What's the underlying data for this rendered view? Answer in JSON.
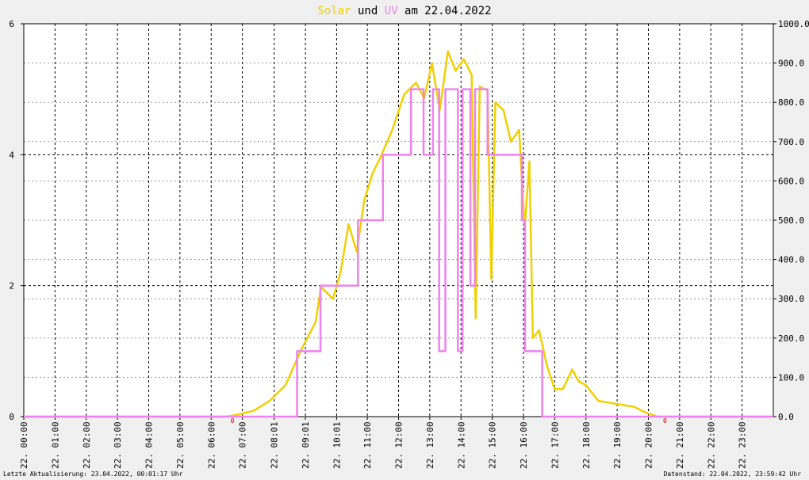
{
  "chart_data": {
    "type": "line",
    "title_words": [
      "Solar",
      "und",
      "UV",
      "am 22.04.2022"
    ],
    "footer_left": "Letzte Aktualisierung: 23.04.2022, 00:01:17 Uhr",
    "footer_right": "Datenstand: 22.04.2022, 23:59:42 Uhr",
    "xlim": [
      0,
      24
    ],
    "xticks": [
      {
        "value": 0,
        "label": "22. 00:00"
      },
      {
        "value": 1,
        "label": "22. 01:00"
      },
      {
        "value": 2,
        "label": "22. 02:00"
      },
      {
        "value": 3,
        "label": "22. 03:00"
      },
      {
        "value": 4,
        "label": "22. 04:00"
      },
      {
        "value": 5,
        "label": "22. 05:00"
      },
      {
        "value": 6,
        "label": "22. 06:00"
      },
      {
        "value": 7,
        "label": "22. 07:00"
      },
      {
        "value": 8.017,
        "label": "22. 08:01"
      },
      {
        "value": 9.017,
        "label": "22. 09:01"
      },
      {
        "value": 10.017,
        "label": "22. 10:01"
      },
      {
        "value": 11,
        "label": "22. 11:00"
      },
      {
        "value": 12,
        "label": "22. 12:00"
      },
      {
        "value": 13,
        "label": "22. 13:00"
      },
      {
        "value": 14,
        "label": "22. 14:00"
      },
      {
        "value": 15,
        "label": "22. 15:00"
      },
      {
        "value": 16,
        "label": "22. 16:00"
      },
      {
        "value": 17,
        "label": "22. 17:00"
      },
      {
        "value": 18,
        "label": "22. 18:00"
      },
      {
        "value": 19,
        "label": "22. 19:00"
      },
      {
        "value": 20,
        "label": "22. 20:00"
      },
      {
        "value": 21,
        "label": "22. 21:00"
      },
      {
        "value": 22,
        "label": "22. 22:00"
      },
      {
        "value": 23,
        "label": "22. 23:00"
      }
    ],
    "ylim": [
      0,
      6
    ],
    "yticks": [
      0,
      2,
      4,
      6
    ],
    "y2lim": [
      0,
      1000
    ],
    "y2ticks": [
      {
        "value": 0,
        "label": "0.0"
      },
      {
        "value": 100,
        "label": "100.0"
      },
      {
        "value": 200,
        "label": "200.0"
      },
      {
        "value": 300,
        "label": "300.0"
      },
      {
        "value": 400,
        "label": "400.0"
      },
      {
        "value": 500,
        "label": "500.0"
      },
      {
        "value": 600,
        "label": "600.0"
      },
      {
        "value": 700,
        "label": "700.0"
      },
      {
        "value": 800,
        "label": "800.0"
      },
      {
        "value": 900,
        "label": "900.0"
      },
      {
        "value": 1000,
        "label": "1000.0"
      }
    ],
    "grid": true,
    "annotations": [
      {
        "x": 6.68,
        "text": "0"
      },
      {
        "x": 20.53,
        "text": "0"
      }
    ],
    "series": [
      {
        "name": "Solar",
        "color": "#f0d000",
        "axis": "y2",
        "x": [
          0,
          6.5,
          6.85,
          7.36,
          7.87,
          8.38,
          8.88,
          9.34,
          9.52,
          9.9,
          10.15,
          10.4,
          10.66,
          10.9,
          11.17,
          11.42,
          11.8,
          12.18,
          12.56,
          12.82,
          13.07,
          13.32,
          13.58,
          13.83,
          14.09,
          14.34,
          14.47,
          14.6,
          14.85,
          14.97,
          15.1,
          15.36,
          15.6,
          15.86,
          16.04,
          16.19,
          16.3,
          16.5,
          16.75,
          17.0,
          17.26,
          17.56,
          17.77,
          18.0,
          18.4,
          18.78,
          19.16,
          19.54,
          19.92,
          20.3,
          24
        ],
        "values": [
          0,
          0,
          5,
          15,
          40,
          80,
          170,
          240,
          330,
          300,
          370,
          490,
          420,
          550,
          620,
          660,
          730,
          820,
          850,
          810,
          900,
          780,
          930,
          880,
          910,
          870,
          250,
          840,
          830,
          350,
          800,
          780,
          700,
          730,
          480,
          650,
          200,
          220,
          130,
          70,
          70,
          120,
          90,
          80,
          40,
          35,
          30,
          25,
          10,
          0,
          0
        ]
      },
      {
        "name": "UV",
        "color": "#ee82ee",
        "x": [
          0,
          8.75,
          8.75,
          9.5,
          9.5,
          10.7,
          10.7,
          11.5,
          11.5,
          12.4,
          12.4,
          12.8,
          12.8,
          13.1,
          13.1,
          13.3,
          13.3,
          13.5,
          13.5,
          13.9,
          13.9,
          14.05,
          14.05,
          14.3,
          14.3,
          14.45,
          14.45,
          14.85,
          14.85,
          15.95,
          15.95,
          16.05,
          16.05,
          16.6,
          16.6,
          24
        ],
        "values": [
          0,
          0,
          1,
          1,
          2,
          2,
          3,
          3,
          4,
          4,
          5,
          5,
          4,
          4,
          5,
          5,
          1,
          1,
          5,
          5,
          1,
          1,
          5,
          5,
          2,
          2,
          5,
          5,
          4,
          4,
          3,
          3,
          1,
          1,
          0,
          0
        ]
      }
    ]
  }
}
